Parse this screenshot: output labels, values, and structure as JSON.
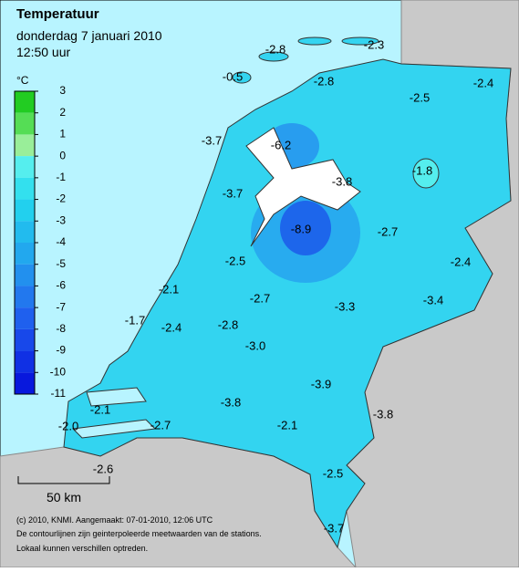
{
  "header": {
    "title": "Temperatuur",
    "date": "donderdag 7 januari 2010",
    "time": "12:50 uur"
  },
  "legend": {
    "unit": "°C",
    "ticks": [
      3,
      2,
      1,
      0,
      -1,
      -2,
      -3,
      -4,
      -5,
      -6,
      -7,
      -8,
      -9,
      -10,
      -11
    ],
    "colors": [
      "#22cc22",
      "#55dd55",
      "#99ee99",
      "#55eeee",
      "#33e0ee",
      "#22d0ee",
      "#22bbee",
      "#22a8ee",
      "#2290ee",
      "#2278ee",
      "#1f60ee",
      "#1848ea",
      "#1030e4",
      "#0818dd"
    ]
  },
  "stations": [
    "-2.8",
    "-2.3",
    "-0.5",
    "-2.8",
    "-2.4",
    "-2.5",
    "-3.7",
    "-6.2",
    "-1.8",
    "-3.8",
    "-3.7",
    "-8.9",
    "-2.7",
    "-2.5",
    "-2.4",
    "-2.1",
    "-2.7",
    "-3.4",
    "-3.3",
    "-1.7",
    "-2.4",
    "-2.8",
    "-3.0",
    "-3.9",
    "-3.8",
    "-3.8",
    "-2.1",
    "-2.1",
    "-2.0",
    "-2.7",
    "-2.6",
    "-2.5",
    "-3.7"
  ],
  "scale_bar": "50 km",
  "footer": [
    "(c) 2010, KNMI. Aangemaakt: 07-01-2010, 12:06 UTC",
    "De contourlijnen zijn geinterpoleerde meetwaarden van de stations.",
    "Lokaal kunnen verschillen optreden."
  ]
}
